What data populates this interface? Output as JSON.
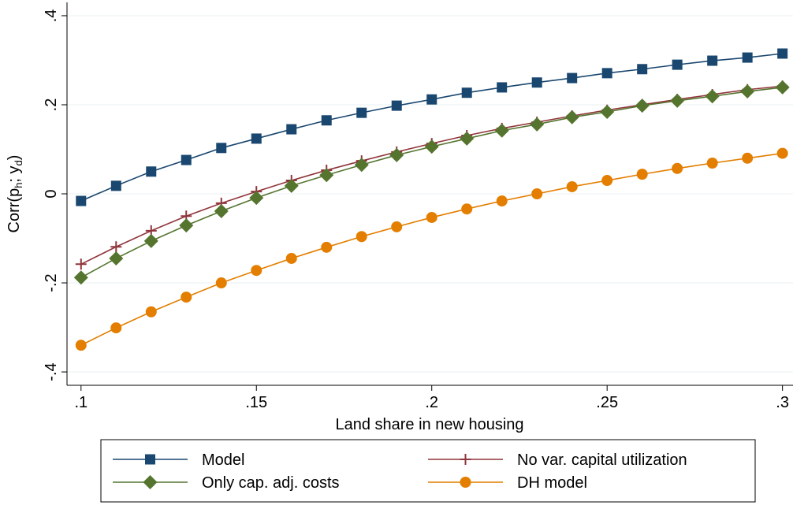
{
  "chart_data": {
    "type": "line",
    "xlabel": "Land share in new housing",
    "ylabel": [
      "Corr(p",
      "h",
      "; y",
      "d",
      ")"
    ],
    "x": [
      0.1,
      0.11,
      0.12,
      0.13,
      0.14,
      0.15,
      0.16,
      0.17,
      0.18,
      0.19,
      0.2,
      0.21,
      0.22,
      0.23,
      0.24,
      0.25,
      0.26,
      0.27,
      0.28,
      0.29,
      0.3
    ],
    "series": [
      {
        "name": "Model",
        "color": "#1a476f",
        "marker": "square",
        "values": [
          -0.016,
          0.018,
          0.05,
          0.076,
          0.103,
          0.124,
          0.145,
          0.165,
          0.182,
          0.198,
          0.212,
          0.227,
          0.239,
          0.25,
          0.26,
          0.271,
          0.28,
          0.29,
          0.299,
          0.306,
          0.315
        ]
      },
      {
        "name": "No var. capital utilization",
        "color": "#90353b",
        "marker": "plus",
        "values": [
          -0.158,
          -0.119,
          -0.083,
          -0.05,
          -0.021,
          0.005,
          0.03,
          0.053,
          0.074,
          0.094,
          0.113,
          0.131,
          0.147,
          0.161,
          0.175,
          0.188,
          0.2,
          0.212,
          0.223,
          0.234,
          0.242
        ]
      },
      {
        "name": "Only cap. adj. costs",
        "color": "#55752f",
        "marker": "diamond",
        "values": [
          -0.188,
          -0.145,
          -0.106,
          -0.071,
          -0.039,
          -0.009,
          0.018,
          0.042,
          0.065,
          0.087,
          0.106,
          0.124,
          0.142,
          0.156,
          0.172,
          0.184,
          0.198,
          0.209,
          0.219,
          0.23,
          0.239
        ]
      },
      {
        "name": "DH model",
        "color": "#e37e00",
        "marker": "circle",
        "values": [
          -0.34,
          -0.301,
          -0.265,
          -0.232,
          -0.2,
          -0.172,
          -0.145,
          -0.12,
          -0.096,
          -0.074,
          -0.053,
          -0.034,
          -0.016,
          0.0,
          0.016,
          0.03,
          0.044,
          0.057,
          0.069,
          0.08,
          0.091
        ]
      }
    ],
    "xlim": [
      0.096,
      0.303
    ],
    "ylim": [
      -0.43,
      0.43
    ],
    "xticks": [
      {
        "value": 0.1,
        "label": ".1"
      },
      {
        "value": 0.15,
        "label": ".15"
      },
      {
        "value": 0.2,
        "label": ".2"
      },
      {
        "value": 0.25,
        "label": ".25"
      },
      {
        "value": 0.3,
        "label": ".3"
      }
    ],
    "yticks": [
      {
        "value": -0.4,
        "label": "-.4"
      },
      {
        "value": -0.2,
        "label": "-.2"
      },
      0,
      {
        "value": 0.2,
        "label": ".2"
      },
      {
        "value": 0.4,
        "label": ".4"
      }
    ],
    "grid": true
  }
}
